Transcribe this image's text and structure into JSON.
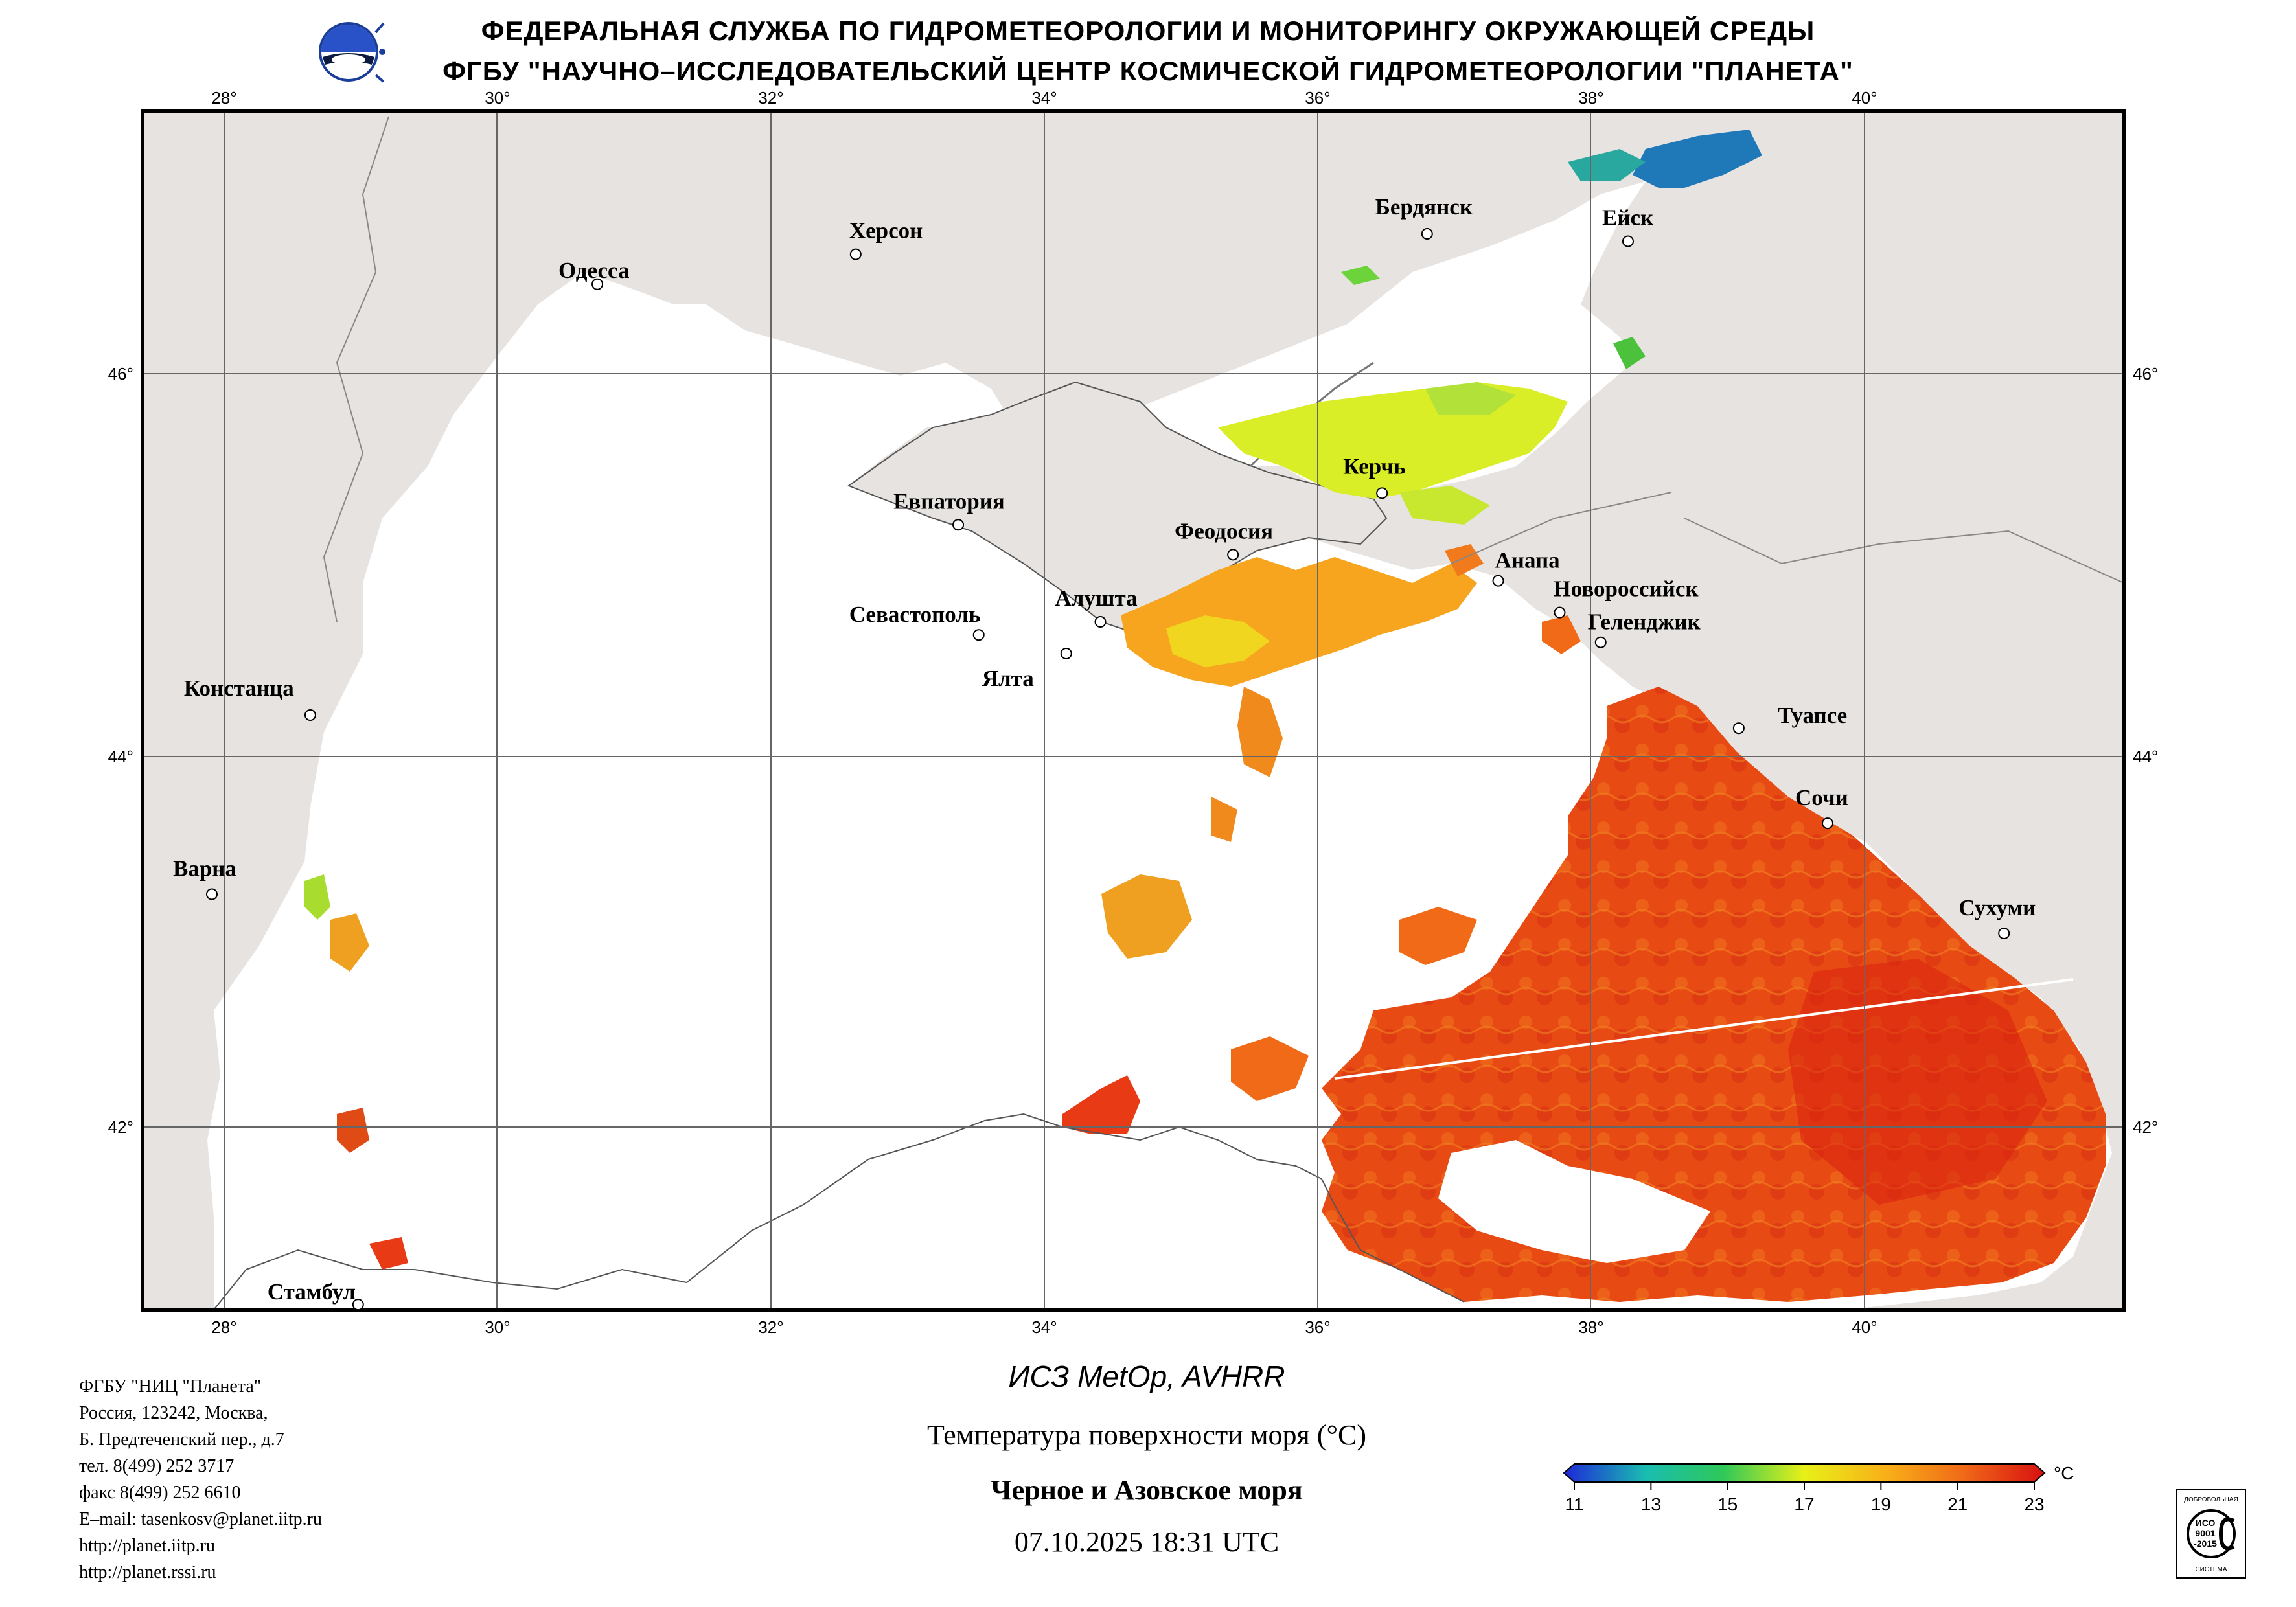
{
  "header": {
    "line1": "ФЕДЕРАЛЬНАЯ СЛУЖБА ПО ГИДРОМЕТЕОРОЛОГИИ И МОНИТОРИНГУ ОКРУЖАЮЩЕЙ СРЕДЫ",
    "line2": "ФГБУ \"НАУЧНО–ИССЛЕДОВАТЕЛЬСКИЙ ЦЕНТР КОСМИЧЕСКОЙ ГИДРОМЕТЕОРОЛОГИИ \"ПЛАНЕТА\""
  },
  "map": {
    "longitude_ticks": [
      "28°",
      "30°",
      "32°",
      "34°",
      "36°",
      "38°",
      "40°"
    ],
    "latitude_ticks": [
      "46°",
      "44°",
      "42°"
    ],
    "land_color": "#e6e3e0",
    "sea_color": "#ffffff",
    "cities": [
      {
        "name": "Одесса",
        "lon": 30.73,
        "lat": 46.48
      },
      {
        "name": "Херсон",
        "lon": 32.62,
        "lat": 46.64
      },
      {
        "name": "Бердянск",
        "lon": 36.8,
        "lat": 46.75
      },
      {
        "name": "Ейск",
        "lon": 38.27,
        "lat": 46.71
      },
      {
        "name": "Евпатория",
        "lon": 33.37,
        "lat": 45.19
      },
      {
        "name": "Керчь",
        "lon": 36.47,
        "lat": 45.36
      },
      {
        "name": "Феодосия",
        "lon": 35.38,
        "lat": 45.03
      },
      {
        "name": "Анапа",
        "lon": 37.32,
        "lat": 44.89
      },
      {
        "name": "Новороссийск",
        "lon": 37.77,
        "lat": 44.72
      },
      {
        "name": "Геленджик",
        "lon": 38.07,
        "lat": 44.56
      },
      {
        "name": "Алушта",
        "lon": 34.41,
        "lat": 44.67
      },
      {
        "name": "Севастополь",
        "lon": 33.52,
        "lat": 44.6
      },
      {
        "name": "Ялта",
        "lon": 34.16,
        "lat": 44.5
      },
      {
        "name": "Констанца",
        "lon": 28.63,
        "lat": 44.17
      },
      {
        "name": "Туапсе",
        "lon": 39.08,
        "lat": 44.1
      },
      {
        "name": "Сочи",
        "lon": 39.73,
        "lat": 43.59
      },
      {
        "name": "Варна",
        "lon": 27.91,
        "lat": 43.21
      },
      {
        "name": "Сухуми",
        "lon": 41.02,
        "lat": 43.0
      },
      {
        "name": "Стамбул",
        "lon": 28.98,
        "lat": 41.01
      }
    ]
  },
  "product": {
    "satellite": "ИСЗ MetOp, AVHRR",
    "title": "Температура поверхности моря (°C)",
    "region": "Черное и Азовское моря",
    "datetime": "07.10.2025 18:31 UTC"
  },
  "colorbar": {
    "unit": "°C",
    "ticks": [
      "11",
      "13",
      "15",
      "17",
      "19",
      "21",
      "23"
    ],
    "colors": [
      "#1f27d8",
      "#1a7ad8",
      "#19bdb0",
      "#2ec85a",
      "#8ee02a",
      "#e8f018",
      "#f8c818",
      "#f59a1c",
      "#f06a18",
      "#e83a14",
      "#d81010"
    ]
  },
  "org": {
    "lines": [
      "ФГБУ \"НИЦ \"Планета\"",
      "Россия, 123242, Москва,",
      "Б. Предтеченский пер., д.7",
      "тел. 8(499) 252 3717",
      "факс 8(499) 252 6610",
      "E–mail: tasenkosv@planet.iitp.ru",
      "http://planet.iitp.ru",
      "http://planet.rssi.ru"
    ]
  },
  "certification": {
    "top": "ДОБРОВОЛЬНАЯ",
    "iso": "ИСО",
    "num": "9001",
    "year": "-2015",
    "bottom": "СИСТЕМА"
  }
}
